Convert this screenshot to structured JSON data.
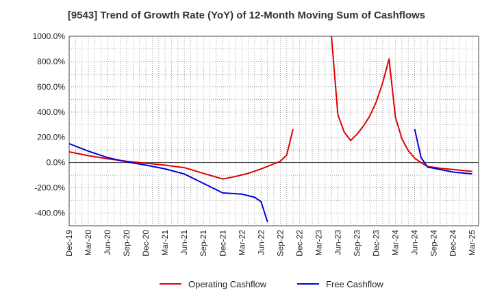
{
  "chart_data": {
    "type": "line",
    "title": "[9543]  Trend of Growth Rate (YoY) of 12-Month Moving Sum of Cashflows",
    "xlabel": "",
    "ylabel": "",
    "ylim": [
      -500,
      1000
    ],
    "y_ticks": [
      "1000.0%",
      "800.0%",
      "600.0%",
      "400.0%",
      "200.0%",
      "0.0%",
      "-200.0%",
      "-400.0%"
    ],
    "y_tick_values": [
      1000,
      800,
      600,
      400,
      200,
      0,
      -200,
      -400
    ],
    "x_start": "Dec-19",
    "x_months": 64,
    "x_tick_labels": [
      "Dec-19",
      "Mar-20",
      "Jun-20",
      "Sep-20",
      "Dec-20",
      "Mar-21",
      "Jun-21",
      "Sep-21",
      "Dec-21",
      "Mar-22",
      "Jun-22",
      "Sep-22",
      "Dec-22",
      "Mar-23",
      "Jun-23",
      "Sep-23",
      "Dec-23",
      "Mar-24",
      "Jun-24",
      "Sep-24",
      "Dec-24",
      "Mar-25"
    ],
    "grid": true,
    "legend_position": "bottom",
    "series": [
      {
        "name": "Operating Cashflow",
        "color": "#e00000",
        "segments": [
          [
            [
              0,
              85
            ],
            [
              3,
              55
            ],
            [
              6,
              30
            ],
            [
              9,
              10
            ],
            [
              12,
              -5
            ],
            [
              15,
              -20
            ],
            [
              18,
              -40
            ],
            [
              21,
              -85
            ],
            [
              24,
              -130
            ],
            [
              26,
              -110
            ],
            [
              28,
              -85
            ],
            [
              30,
              -50
            ],
            [
              31,
              -30
            ],
            [
              32,
              -10
            ],
            [
              33,
              10
            ],
            [
              34,
              60
            ],
            [
              35,
              265
            ]
          ],
          [
            [
              41,
              1000
            ],
            [
              42,
              380
            ],
            [
              43,
              240
            ],
            [
              44,
              175
            ],
            [
              45,
              225
            ],
            [
              46,
              290
            ],
            [
              47,
              370
            ],
            [
              48,
              480
            ],
            [
              49,
              630
            ],
            [
              50,
              820
            ],
            [
              51,
              360
            ],
            [
              52,
              190
            ],
            [
              53,
              95
            ],
            [
              54,
              35
            ],
            [
              55,
              0
            ],
            [
              56,
              -30
            ],
            [
              58,
              -45
            ],
            [
              60,
              -55
            ],
            [
              63,
              -70
            ]
          ]
        ]
      },
      {
        "name": "Free Cashflow",
        "color": "#0000dd",
        "segments": [
          [
            [
              0,
              150
            ],
            [
              3,
              90
            ],
            [
              6,
              40
            ],
            [
              9,
              5
            ],
            [
              12,
              -20
            ],
            [
              15,
              -50
            ],
            [
              18,
              -90
            ],
            [
              21,
              -165
            ],
            [
              24,
              -240
            ],
            [
              27,
              -250
            ],
            [
              29,
              -275
            ],
            [
              30,
              -310
            ],
            [
              31,
              -470
            ]
          ],
          [
            [
              54,
              265
            ],
            [
              55,
              40
            ],
            [
              56,
              -35
            ],
            [
              58,
              -55
            ],
            [
              60,
              -75
            ],
            [
              63,
              -90
            ]
          ]
        ]
      }
    ]
  },
  "legend": {
    "operating_label": "Operating Cashflow",
    "free_label": "Free Cashflow"
  }
}
